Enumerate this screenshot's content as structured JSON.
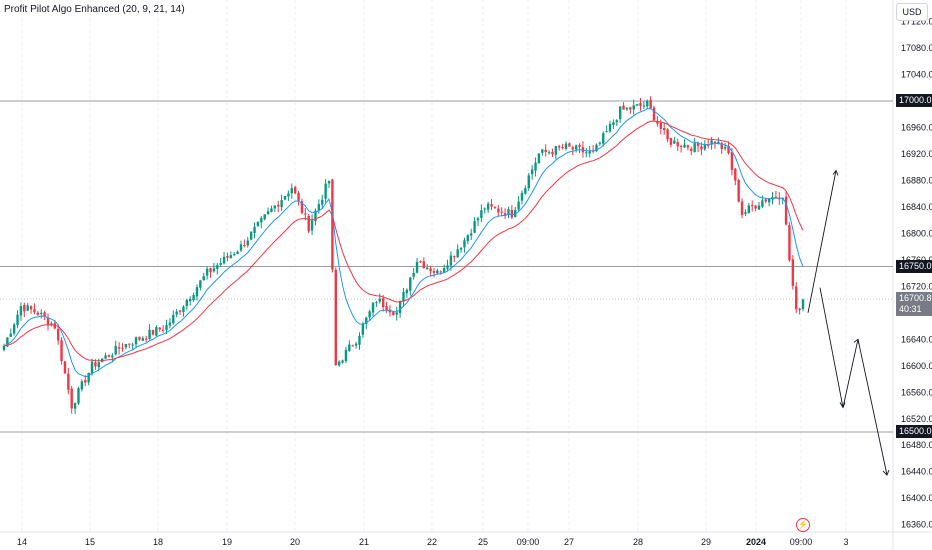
{
  "indicator_label": "Profit Pilot Algo Enhanced (20, 9, 21, 14)",
  "currency": "USD",
  "price_tags": {
    "level_1": "17000.0",
    "level_2": "16750.0",
    "level_3": "16500.0",
    "current_price": "16700.8",
    "countdown": "40:31"
  },
  "live_icon": "lightning-icon",
  "colors": {
    "up": "#089981",
    "down": "#f23645",
    "ema_fast": "#2196f3",
    "ema_slow": "#f23645",
    "projection": "#131722"
  },
  "chart_data": {
    "type": "candlestick",
    "y_ticks": [
      "17120.0",
      "17080.0",
      "17040.0",
      "17000.0",
      "16960.0",
      "16920.0",
      "16880.0",
      "16840.0",
      "16800.0",
      "16760.0",
      "16720.0",
      "16680.0",
      "16640.0",
      "16600.0",
      "16560.0",
      "16520.0",
      "16480.0",
      "16440.0",
      "16400.0",
      "16360.0"
    ],
    "ylim": [
      16348,
      17140
    ],
    "x_ticks": [
      "14",
      "15",
      "18",
      "19",
      "20",
      "21",
      "22",
      "25",
      "09:00",
      "27",
      "28",
      "29",
      "2024",
      "09:00",
      "3"
    ],
    "horizontal_levels": [
      17000.0,
      16750.0,
      16500.0
    ],
    "current_price": 16700.8,
    "path_anchors": [
      {
        "i": 0,
        "p": 16630
      },
      {
        "i": 5,
        "p": 16690
      },
      {
        "i": 10,
        "p": 16680
      },
      {
        "i": 15,
        "p": 16660
      },
      {
        "i": 20,
        "p": 16540
      },
      {
        "i": 26,
        "p": 16600
      },
      {
        "i": 35,
        "p": 16630
      },
      {
        "i": 48,
        "p": 16660
      },
      {
        "i": 60,
        "p": 16740
      },
      {
        "i": 70,
        "p": 16780
      },
      {
        "i": 78,
        "p": 16830
      },
      {
        "i": 85,
        "p": 16870
      },
      {
        "i": 90,
        "p": 16810
      },
      {
        "i": 96,
        "p": 16880
      },
      {
        "i": 98,
        "p": 16600
      },
      {
        "i": 104,
        "p": 16640
      },
      {
        "i": 110,
        "p": 16700
      },
      {
        "i": 116,
        "p": 16680
      },
      {
        "i": 122,
        "p": 16760
      },
      {
        "i": 128,
        "p": 16740
      },
      {
        "i": 136,
        "p": 16790
      },
      {
        "i": 142,
        "p": 16840
      },
      {
        "i": 150,
        "p": 16830
      },
      {
        "i": 158,
        "p": 16920
      },
      {
        "i": 166,
        "p": 16930
      },
      {
        "i": 174,
        "p": 16920
      },
      {
        "i": 182,
        "p": 16985
      },
      {
        "i": 190,
        "p": 16995
      },
      {
        "i": 196,
        "p": 16940
      },
      {
        "i": 204,
        "p": 16930
      },
      {
        "i": 210,
        "p": 16940
      },
      {
        "i": 214,
        "p": 16920
      },
      {
        "i": 218,
        "p": 16830
      },
      {
        "i": 224,
        "p": 16850
      },
      {
        "i": 230,
        "p": 16860
      },
      {
        "i": 232,
        "p": 16760
      },
      {
        "i": 234,
        "p": 16680
      },
      {
        "i": 236,
        "p": 16700
      }
    ],
    "projection_up": [
      [
        16680,
        16895
      ]
    ],
    "projection_down": [
      [
        16718,
        16537,
        16640,
        16435
      ]
    ]
  }
}
